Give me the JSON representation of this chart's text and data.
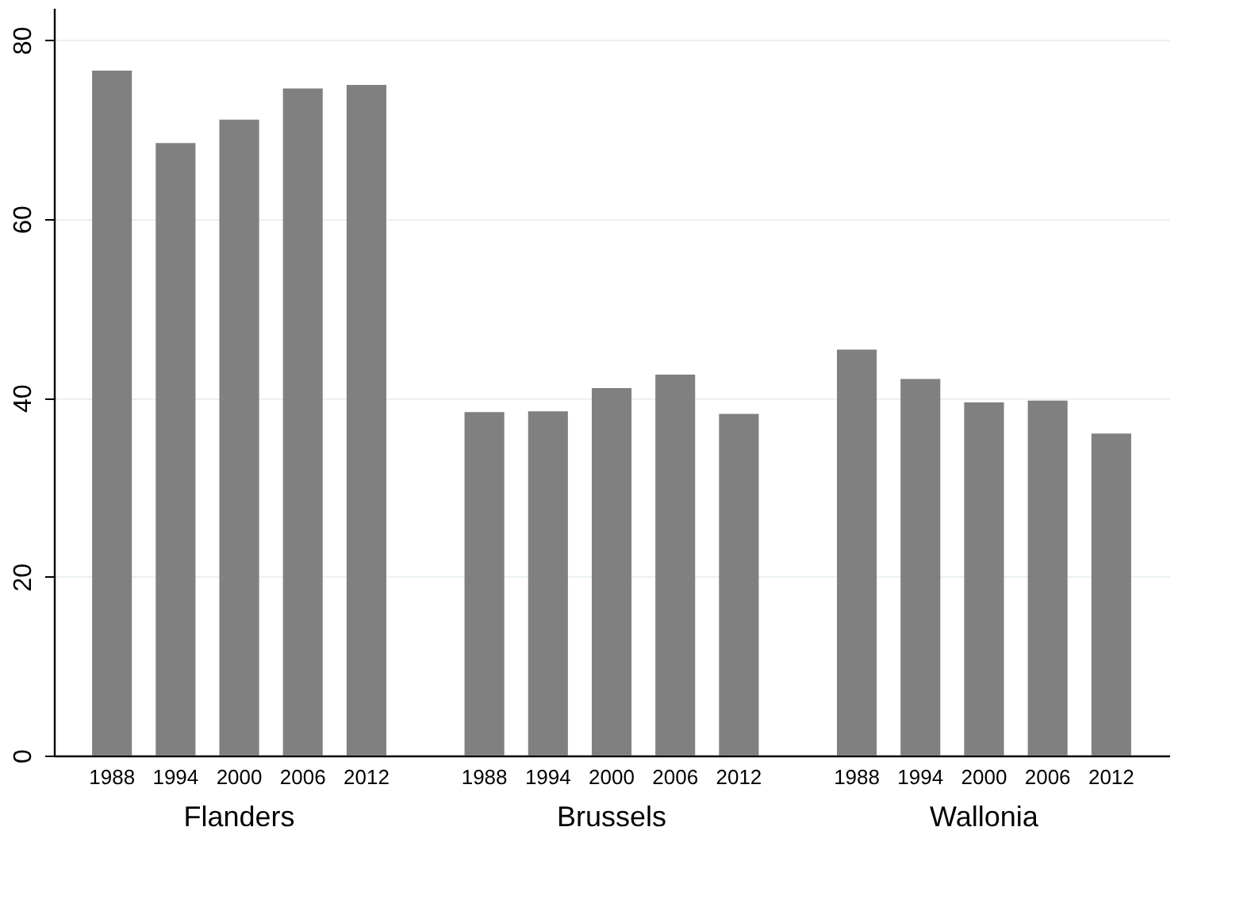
{
  "chart_data": {
    "type": "bar",
    "categories": [
      "Flanders",
      "Brussels",
      "Wallonia"
    ],
    "series": [
      {
        "name": "1988",
        "color": "#808080",
        "values": [
          76.6,
          38.4,
          45.4
        ]
      },
      {
        "name": "1994",
        "color": "#808080",
        "values": [
          68.5,
          38.5,
          42.1
        ]
      },
      {
        "name": "2000",
        "color": "#808080",
        "values": [
          71.1,
          41.1,
          39.5
        ]
      },
      {
        "name": "2006",
        "color": "#808080",
        "values": [
          74.6,
          42.6,
          39.7
        ]
      },
      {
        "name": "2012",
        "color": "#808080",
        "values": [
          75.0,
          38.2,
          36.0
        ]
      }
    ],
    "ylim": [
      0,
      83.6
    ],
    "yticks": [
      0,
      20,
      40,
      60,
      80
    ],
    "grid": "y",
    "legend": false
  }
}
